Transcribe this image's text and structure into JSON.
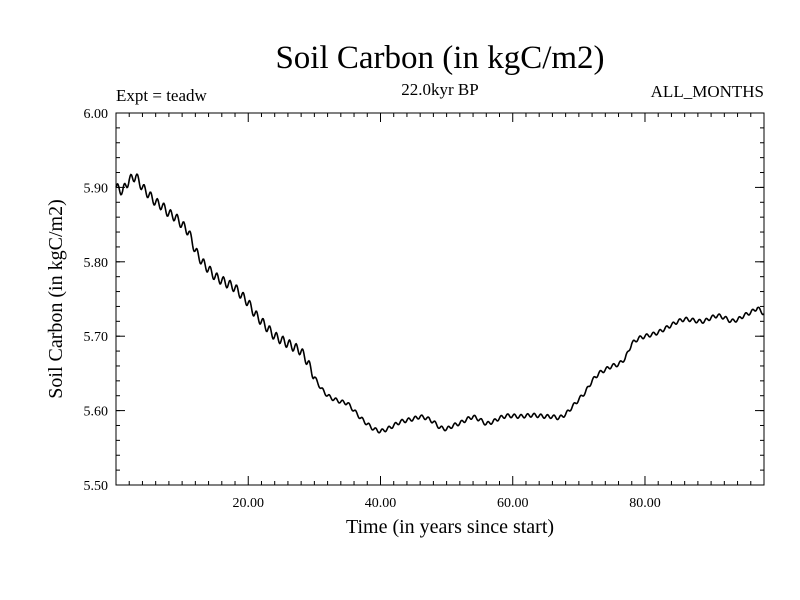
{
  "header": {
    "title": "Soil Carbon (in kgC/m2)",
    "subtitle": "22.0kyr BP",
    "left_note": "Expt = teadw",
    "right_note": "ALL_MONTHS"
  },
  "chart_data": {
    "type": "line",
    "title": "Soil Carbon (in kgC/m2)",
    "xlabel": "Time (in years since start)",
    "ylabel": "Soil Carbon (in kgC/m2)",
    "xlim": [
      0,
      98
    ],
    "ylim": [
      5.5,
      6.0
    ],
    "x_ticks": [
      20,
      40,
      60,
      80
    ],
    "x_tick_labels": [
      "20.00",
      "40.00",
      "60.00",
      "80.00"
    ],
    "y_ticks": [
      5.5,
      5.6,
      5.7,
      5.8,
      5.9,
      6.0
    ],
    "y_tick_labels": [
      "5.50",
      "5.60",
      "5.70",
      "5.80",
      "5.90",
      "6.00"
    ],
    "grid": false,
    "line_color": "#000000",
    "series": [
      {
        "x": [
          0,
          1,
          2,
          3,
          4,
          5,
          6,
          7,
          8,
          9,
          10,
          11,
          12,
          13,
          14,
          15,
          16,
          17,
          18,
          19,
          20,
          21,
          22,
          23,
          24,
          25,
          26,
          27,
          28,
          29,
          30,
          31,
          32,
          33,
          34,
          35,
          36,
          37,
          38,
          39,
          40,
          41,
          42,
          43,
          44,
          45,
          46,
          47,
          48,
          49,
          50,
          51,
          52,
          53,
          54,
          55,
          56,
          57,
          58,
          59,
          60,
          61,
          62,
          63,
          64,
          65,
          66,
          67,
          68,
          69,
          70,
          71,
          72,
          73,
          74,
          75,
          76,
          77,
          78,
          79,
          80,
          81,
          82,
          83,
          84,
          85,
          86,
          87,
          88,
          89,
          90,
          91,
          92,
          93,
          94,
          95,
          96,
          97,
          98
        ],
        "values": [
          5.9,
          5.895,
          5.91,
          5.915,
          5.9,
          5.89,
          5.88,
          5.875,
          5.865,
          5.86,
          5.85,
          5.84,
          5.815,
          5.8,
          5.79,
          5.78,
          5.775,
          5.77,
          5.765,
          5.755,
          5.745,
          5.73,
          5.72,
          5.71,
          5.7,
          5.695,
          5.69,
          5.685,
          5.68,
          5.665,
          5.645,
          5.63,
          5.62,
          5.615,
          5.612,
          5.61,
          5.6,
          5.59,
          5.582,
          5.575,
          5.572,
          5.575,
          5.58,
          5.585,
          5.587,
          5.589,
          5.592,
          5.59,
          5.585,
          5.577,
          5.575,
          5.58,
          5.583,
          5.588,
          5.592,
          5.588,
          5.582,
          5.585,
          5.59,
          5.593,
          5.593,
          5.592,
          5.593,
          5.594,
          5.593,
          5.592,
          5.592,
          5.59,
          5.595,
          5.605,
          5.615,
          5.625,
          5.64,
          5.65,
          5.655,
          5.66,
          5.662,
          5.67,
          5.69,
          5.697,
          5.7,
          5.702,
          5.705,
          5.71,
          5.715,
          5.72,
          5.723,
          5.722,
          5.72,
          5.72,
          5.725,
          5.728,
          5.725,
          5.72,
          5.722,
          5.728,
          5.732,
          5.738,
          5.73
        ]
      }
    ]
  }
}
